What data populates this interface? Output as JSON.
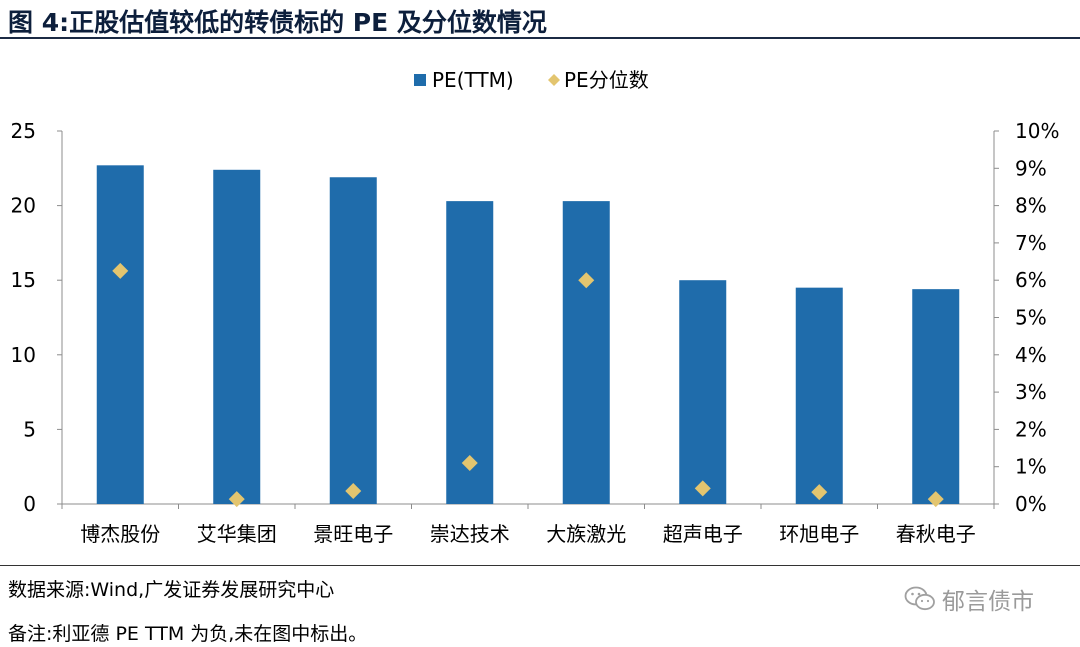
{
  "figure": {
    "title": "图 4:正股估值较低的转债标的 PE 及分位数情况"
  },
  "chart_data": {
    "type": "bar",
    "categories": [
      "博杰股份",
      "艾华集团",
      "景旺电子",
      "崇达技术",
      "大族激光",
      "超声电子",
      "环旭电子",
      "春秋电子"
    ],
    "series": [
      {
        "name": "PE(TTM)",
        "type": "bar",
        "axis": "left",
        "color": "#1f6cab",
        "values": [
          22.7,
          22.4,
          21.9,
          20.3,
          20.3,
          15.0,
          14.5,
          14.4
        ]
      },
      {
        "name": "PE分位数",
        "type": "scatter",
        "axis": "right",
        "color": "#e3c56f",
        "values": [
          0.0625,
          0.0013,
          0.0035,
          0.011,
          0.06,
          0.0042,
          0.0032,
          0.0013
        ]
      }
    ],
    "y_left": {
      "range": [
        0,
        25
      ],
      "ticks": [
        0,
        5,
        10,
        15,
        20,
        25
      ]
    },
    "y_right": {
      "range": [
        0,
        0.1
      ],
      "ticks": [
        0,
        0.01,
        0.02,
        0.03,
        0.04,
        0.05,
        0.06,
        0.07,
        0.08,
        0.09,
        0.1
      ],
      "tick_labels": [
        "0%",
        "1%",
        "2%",
        "3%",
        "4%",
        "5%",
        "6%",
        "7%",
        "8%",
        "9%",
        "10%"
      ]
    },
    "legend": {
      "position": "top-center"
    },
    "grid": false
  },
  "footer": {
    "source": "数据来源:Wind,广发证券发展研究中心",
    "note": "备注:利亚德 PE TTM 为负,未在图中标出。",
    "watermark": "郁言债市",
    "watermark_icon": "wechat-icon"
  }
}
